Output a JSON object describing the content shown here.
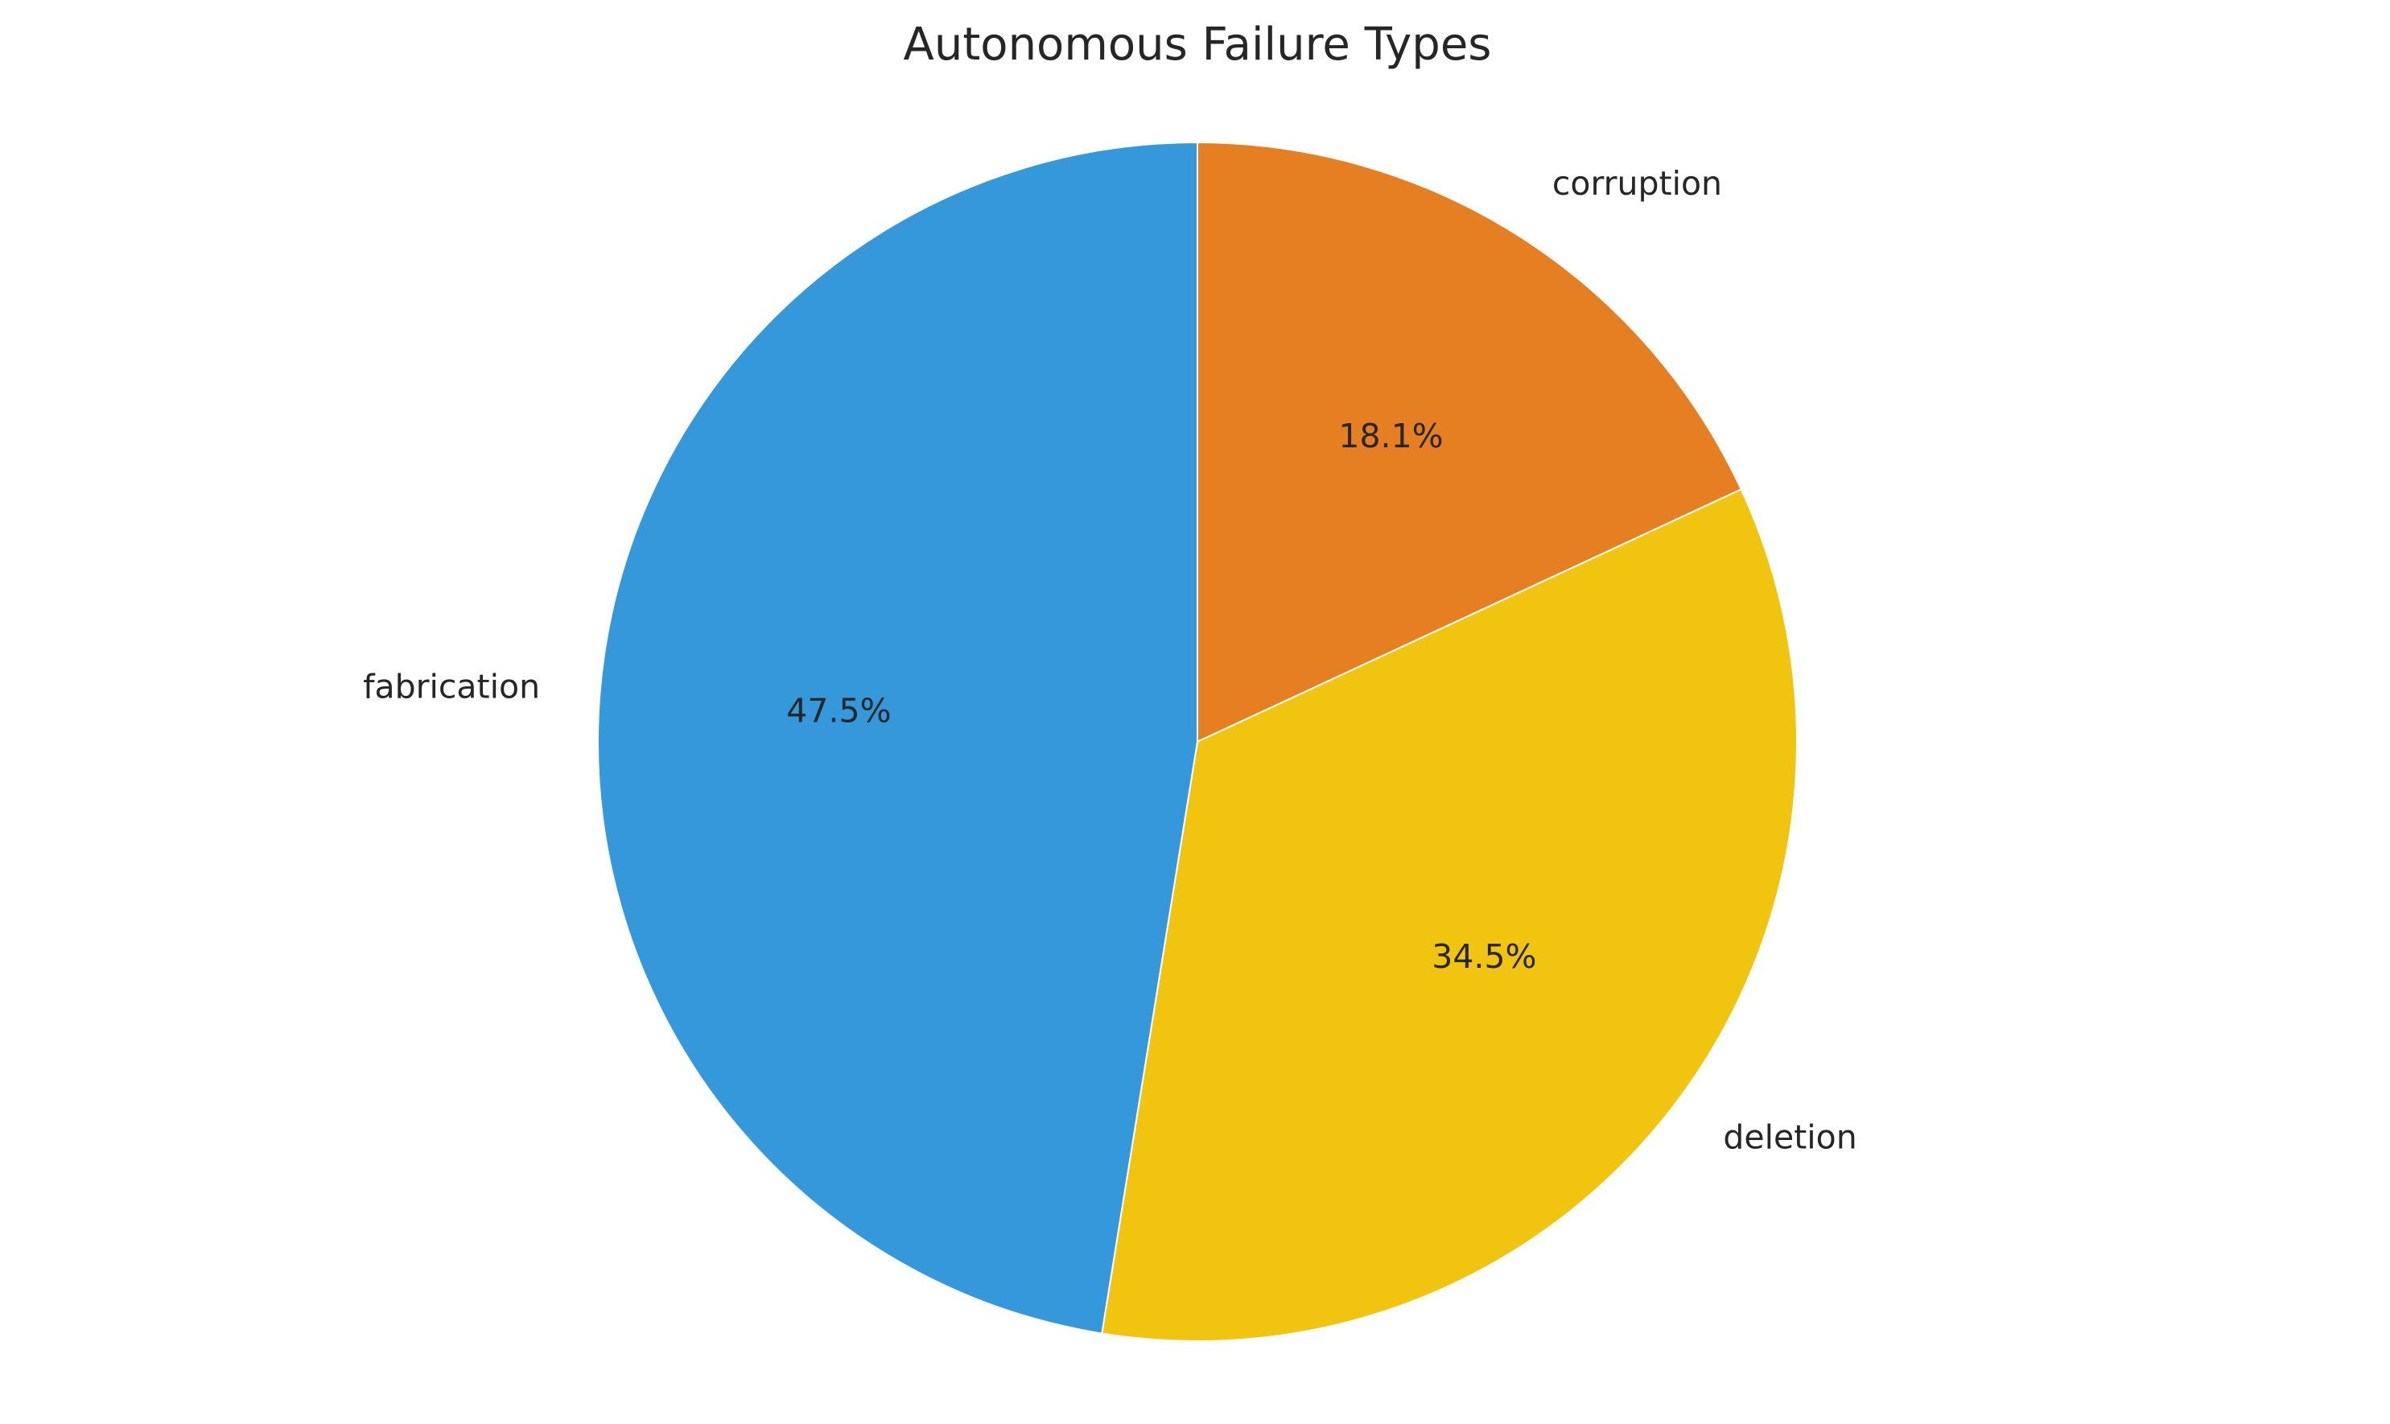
{
  "chart_data": {
    "type": "pie",
    "title": "Autonomous Failure Types",
    "start": "top",
    "direction": "clockwise",
    "slices": [
      {
        "label": "corruption",
        "value": 18.1,
        "pct_label": "18.1%",
        "color": "#e67e22"
      },
      {
        "label": "deletion",
        "value": 34.5,
        "pct_label": "34.5%",
        "color": "#f1c40f"
      },
      {
        "label": "fabrication",
        "value": 47.5,
        "pct_label": "47.5%",
        "color": "#3498db"
      }
    ],
    "edge_color": "#ffffff"
  }
}
